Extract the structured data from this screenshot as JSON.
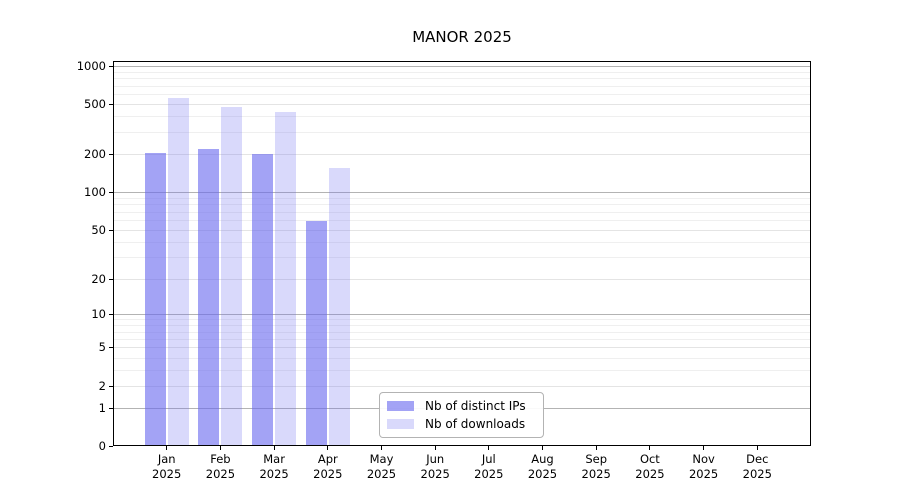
{
  "title": "MANOR 2025",
  "chart_data": {
    "type": "bar",
    "title": "MANOR 2025",
    "yscale": "symlog",
    "ylim": [
      0,
      1000
    ],
    "grid": true,
    "legend_position": "lower-center-inside",
    "months": [
      "Jan",
      "Feb",
      "Mar",
      "Apr",
      "May",
      "Jun",
      "Jul",
      "Aug",
      "Sep",
      "Oct",
      "Nov",
      "Dec"
    ],
    "year_label": "2025",
    "y_ticks": [
      0,
      1,
      2,
      5,
      10,
      20,
      50,
      100,
      200,
      500,
      1000
    ],
    "y_minor_ticks": [
      3,
      4,
      6,
      7,
      8,
      9,
      30,
      40,
      60,
      70,
      80,
      90,
      300,
      400,
      600,
      700,
      800,
      900
    ],
    "series": [
      {
        "name": "Nb of distinct IPs",
        "color": "rgba(102,102,238,0.6)",
        "values": [
          205,
          220,
          200,
          59,
          null,
          null,
          null,
          null,
          null,
          null,
          null,
          null
        ]
      },
      {
        "name": "Nb of downloads",
        "color": "rgba(102,102,238,0.25)",
        "values": [
          560,
          475,
          435,
          155,
          null,
          null,
          null,
          null,
          null,
          null,
          null,
          null
        ]
      }
    ]
  },
  "colors": {
    "grid_decade": "#b3b3b3",
    "grid_major": "#e4e4e4",
    "grid_minor": "#efefef",
    "axis_frame": "#000000",
    "legend_border": "#b3b3b3",
    "background": "#ffffff"
  }
}
